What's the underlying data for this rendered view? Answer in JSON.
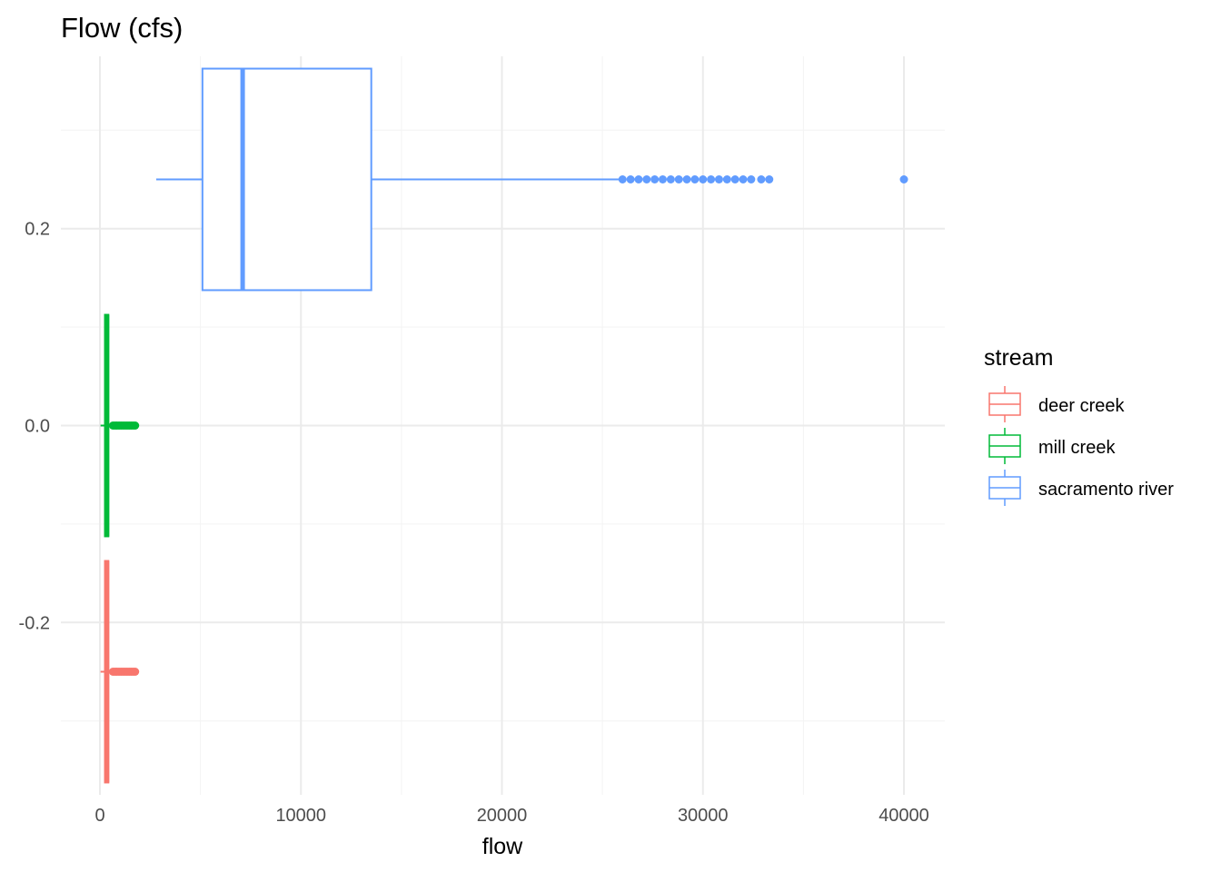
{
  "chart_data": {
    "type": "boxplot",
    "title": "Flow (cfs)",
    "xlabel": "flow",
    "ylabel": "",
    "xlim": [
      0,
      40000
    ],
    "ylim": [
      -0.375,
      0.375
    ],
    "x_ticks": [
      0,
      10000,
      20000,
      30000,
      40000
    ],
    "y_ticks": [
      -0.2,
      0.0,
      0.2
    ],
    "y_tick_labels": [
      "-0.2",
      "0.0",
      "0.2"
    ],
    "grid": true,
    "legend": {
      "title": "stream",
      "placement": "right"
    },
    "series": [
      {
        "name": "deer creek",
        "color": "#F8766D",
        "y_center": -0.25,
        "whisker_low": 30,
        "q1": 250,
        "median": 350,
        "q3": 420,
        "whisker_high": 600,
        "outliers": [
          650,
          750,
          850,
          950,
          1050,
          1150,
          1250,
          1350,
          1450,
          1550,
          1650,
          1750
        ]
      },
      {
        "name": "mill creek",
        "color": "#00BA38",
        "y_center": 0.0,
        "whisker_low": 30,
        "q1": 250,
        "median": 350,
        "q3": 420,
        "whisker_high": 600,
        "outliers": [
          650,
          750,
          850,
          950,
          1050,
          1150,
          1250,
          1350,
          1450,
          1550,
          1650,
          1750
        ]
      },
      {
        "name": "sacramento river",
        "color": "#619CFF",
        "y_center": 0.25,
        "whisker_low": 2800,
        "q1": 5100,
        "median": 7100,
        "q3": 13500,
        "whisker_high": 25900,
        "outliers": [
          26000,
          26400,
          26800,
          27200,
          27600,
          28000,
          28400,
          28800,
          29200,
          29600,
          30000,
          30400,
          30800,
          31200,
          31600,
          32000,
          32400,
          32900,
          33300,
          40000
        ]
      }
    ]
  }
}
